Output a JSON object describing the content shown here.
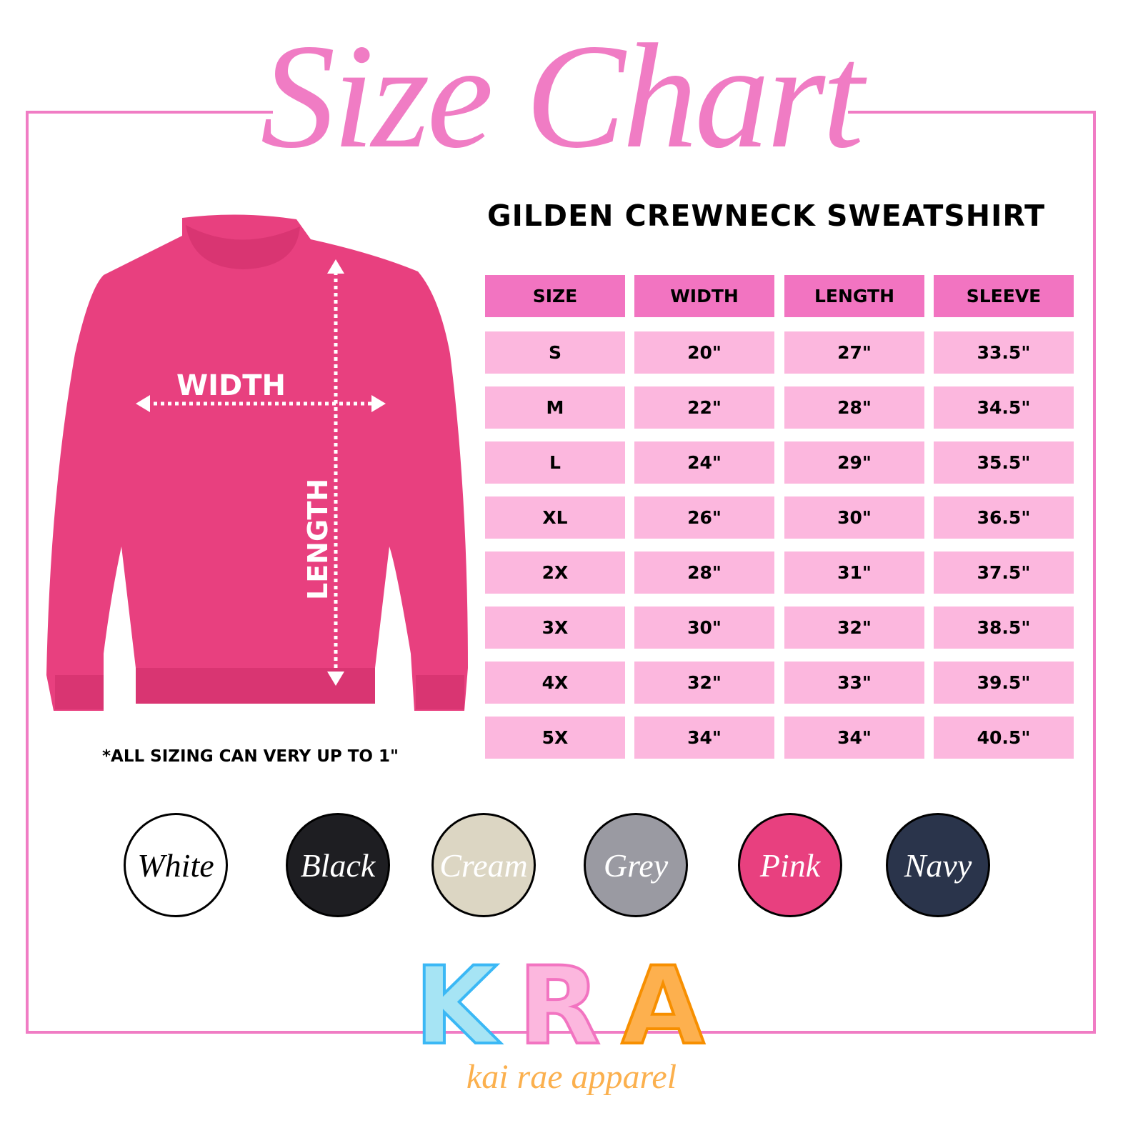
{
  "title": "Size Chart",
  "subtitle": "GILDEN CREWNECK SWEATSHIRT",
  "diagram": {
    "width_label": "WIDTH",
    "length_label": "LENGTH",
    "garment_color": "#e8407f"
  },
  "table": {
    "headers": [
      "SIZE",
      "WIDTH",
      "LENGTH",
      "SLEEVE"
    ],
    "rows": [
      [
        "S",
        "20\"",
        "27\"",
        "33.5\""
      ],
      [
        "M",
        "22\"",
        "28\"",
        "34.5\""
      ],
      [
        "L",
        "24\"",
        "29\"",
        "35.5\""
      ],
      [
        "XL",
        "26\"",
        "30\"",
        "36.5\""
      ],
      [
        "2X",
        "28\"",
        "31\"",
        "37.5\""
      ],
      [
        "3X",
        "30\"",
        "32\"",
        "38.5\""
      ],
      [
        "4X",
        "32\"",
        "33\"",
        "39.5\""
      ],
      [
        "5X",
        "34\"",
        "34\"",
        "40.5\""
      ]
    ],
    "header_color": "#f274c1",
    "row_color": "#fcb7de"
  },
  "note": "*ALL SIZING CAN VERY UP TO 1\"",
  "colors": [
    {
      "name": "White",
      "fill": "#ffffff",
      "text": "#000000"
    },
    {
      "name": "Black",
      "fill": "#1e1e22",
      "text": "#ffffff"
    },
    {
      "name": "Cream",
      "fill": "#dcd6c3",
      "text": "#ffffff"
    },
    {
      "name": "Grey",
      "fill": "#9a9aa2",
      "text": "#ffffff"
    },
    {
      "name": "Pink",
      "fill": "#e8407f",
      "text": "#ffffff"
    },
    {
      "name": "Navy",
      "fill": "#2a344b",
      "text": "#ffffff"
    }
  ],
  "logo": {
    "letters": [
      "K",
      "R",
      "A"
    ],
    "tagline": "kai rae apparel",
    "letter_colors": [
      "#a6e4f4",
      "#fcb7de",
      "#fdb04e"
    ]
  },
  "accent": "#f07cc4"
}
